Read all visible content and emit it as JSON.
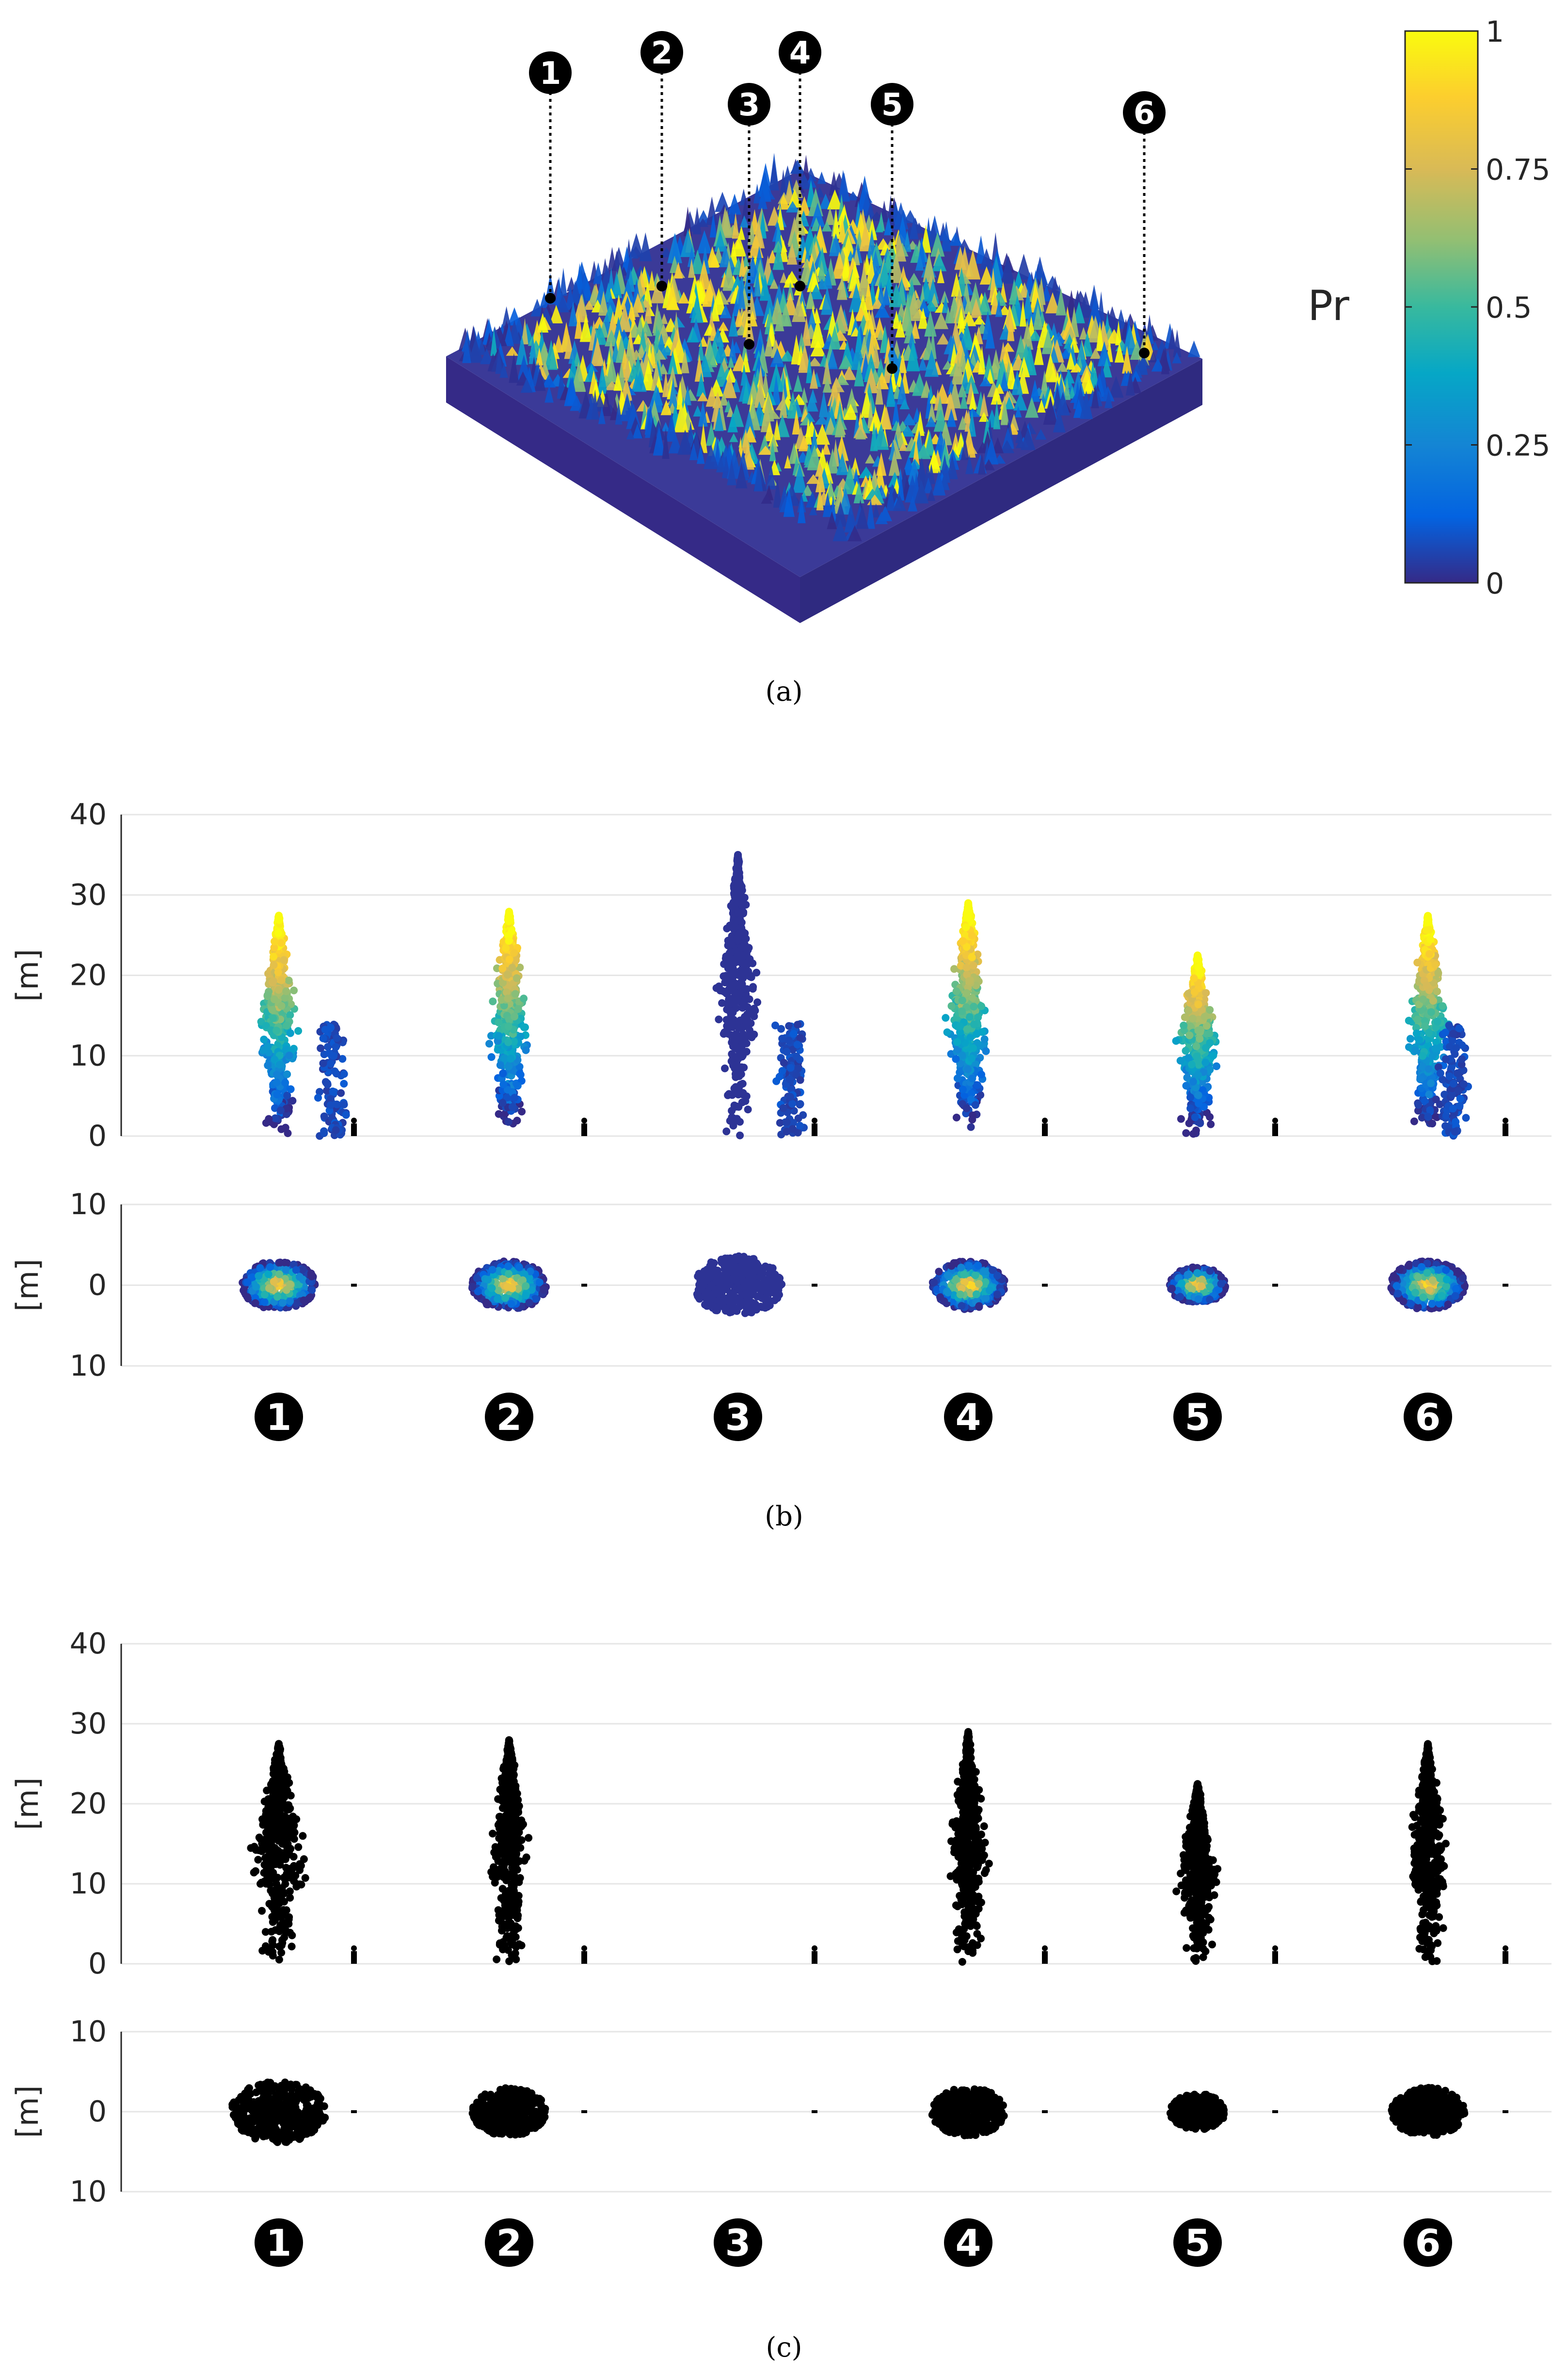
{
  "chart_data": [
    {
      "panel": "a",
      "type": "scatter",
      "title": "",
      "description_axis": "3D forest point cloud coloured by Pr",
      "colorbar": {
        "label": "Pr",
        "range": [
          0,
          1
        ],
        "ticks": [
          0,
          0.25,
          0.5,
          0.75,
          1
        ],
        "tick_labels": [
          "0",
          "0.25",
          "0.5",
          "0.75",
          "1"
        ],
        "colormap": [
          "#352a87",
          "#0363e1",
          "#1485d4",
          "#06a7c6",
          "#38b99e",
          "#92bf73",
          "#d9ba56",
          "#fcce2e",
          "#f9fb0e"
        ]
      },
      "markers": [
        "1",
        "2",
        "3",
        "4",
        "5",
        "6"
      ],
      "caption": "(a)"
    },
    {
      "panel": "b",
      "type": "scatter",
      "trees": [
        "1",
        "2",
        "3",
        "4",
        "5",
        "6"
      ],
      "side_view": {
        "ylabel": "[m]",
        "ylim": [
          0,
          40
        ],
        "yticks": [
          0,
          10,
          20,
          30,
          40
        ],
        "ytick_labels": [
          "0",
          "10",
          "20",
          "30",
          "40"
        ]
      },
      "top_view": {
        "ylabel": "[m]",
        "ylim": [
          -10,
          10
        ],
        "yticks": [
          10,
          0,
          -10
        ],
        "ytick_labels": [
          "10",
          "0",
          "10"
        ]
      },
      "tree_heights_m": [
        27.5,
        28,
        35,
        29,
        22.5,
        27.5
      ],
      "color_by": "Pr",
      "caption": "(b)"
    },
    {
      "panel": "c",
      "type": "scatter",
      "trees": [
        "1",
        "2",
        "3",
        "4",
        "5",
        "6"
      ],
      "side_view": {
        "ylabel": "[m]",
        "ylim": [
          0,
          40
        ],
        "yticks": [
          0,
          10,
          20,
          30,
          40
        ],
        "ytick_labels": [
          "0",
          "10",
          "20",
          "30",
          "40"
        ]
      },
      "top_view": {
        "ylabel": "[m]",
        "ylim": [
          -10,
          10
        ],
        "yticks": [
          10,
          0,
          -10
        ],
        "ytick_labels": [
          "10",
          "0",
          "10"
        ]
      },
      "tree_heights_m": [
        27.5,
        28,
        0,
        29,
        22.5,
        27.5
      ],
      "color_by": "none",
      "caption": "(c)"
    }
  ]
}
